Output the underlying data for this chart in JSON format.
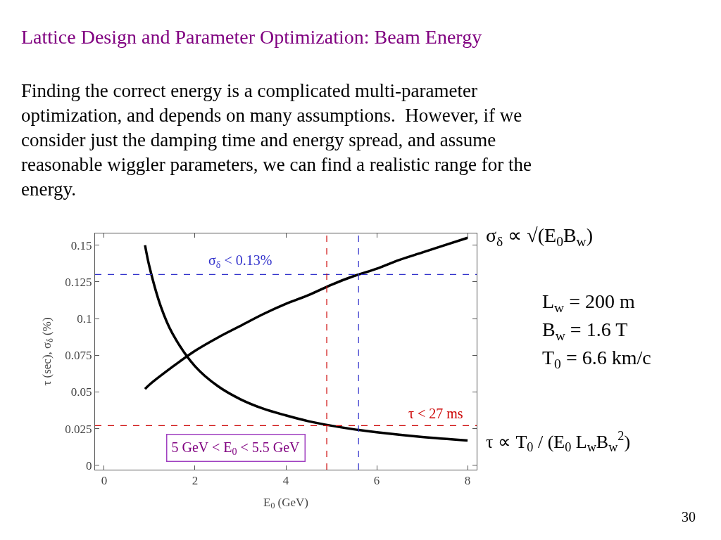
{
  "chart_data": {
    "type": "line",
    "title": "Lattice Design and Parameter Optimization: Beam Energy",
    "subtitle": "Finding the correct energy is a complicated multi-parameter optimization, and depends on many assumptions.  However, if we consider just the damping time and energy spread, and assume reasonable wiggler parameters, we can find a realistic range for the energy.",
    "xlabel": "E$_{0}$ (GeV)",
    "ylabel": "τ (sec), σ$_{δ}$ (%)",
    "series": [
      {
        "color": "#000000",
        "x": [
          0.9,
          1,
          1.5,
          2,
          2.5,
          3,
          3.5,
          4,
          4.5,
          5,
          5.5,
          6,
          6.5,
          7,
          7.5,
          8
        ],
        "values": [
          0.052,
          0.055,
          0.067,
          0.078,
          0.087,
          0.095,
          0.103,
          0.11,
          0.116,
          0.123,
          0.129,
          0.134,
          0.14,
          0.145,
          0.15,
          0.155
        ]
      },
      {
        "color": "#000000",
        "x": [
          0.9,
          1,
          1.25,
          1.5,
          2,
          2.5,
          3,
          3.5,
          4,
          4.5,
          5,
          5.5,
          6,
          7,
          8
        ],
        "values": [
          0.15,
          0.135,
          0.108,
          0.09,
          0.0675,
          0.054,
          0.045,
          0.0386,
          0.034,
          0.03,
          0.027,
          0.0245,
          0.0225,
          0.0193,
          0.0169
        ]
      }
    ],
    "xlim": [
      -0.2,
      8.2
    ],
    "ylim": [
      -0.003,
      0.158
    ],
    "xticks": [
      0,
      2,
      4,
      6,
      8
    ],
    "yticks": [
      0,
      0.025,
      0.05,
      0.075,
      0.1,
      0.125,
      0.15
    ],
    "marker": "none",
    "line_style": "solid",
    "ref_lines": [
      {
        "axis": "y",
        "value": 0.13,
        "label": "σ$_{δ}$ < 0.13%",
        "color": "#3333cc",
        "line_style": "dashed"
      },
      {
        "axis": "x",
        "value": 5.6,
        "color": "#3333cc",
        "line_style": "dashed"
      },
      {
        "axis": "y",
        "value": 0.027,
        "label": "τ < 27 ms",
        "color": "#cc0000",
        "line_style": "dashed"
      },
      {
        "axis": "x",
        "value": 4.9,
        "color": "#cc0000",
        "line_style": "dashed"
      }
    ],
    "annotations": [
      "5 GeV < E$_{0}$ < 5.5 GeV",
      "σ$_{δ}$ ∝ √(E$_{0}$B$_{w}$)",
      "L$_{w}$ = 200 m",
      "B$_{w}$ = 1.6 T",
      "T$_{0}$ = 6.6 km/c",
      "τ ∝ T$_{0}$ / (E$_{0}$ L$_{w}$B$_{w}$$^{2}$)",
      "30"
    ]
  }
}
